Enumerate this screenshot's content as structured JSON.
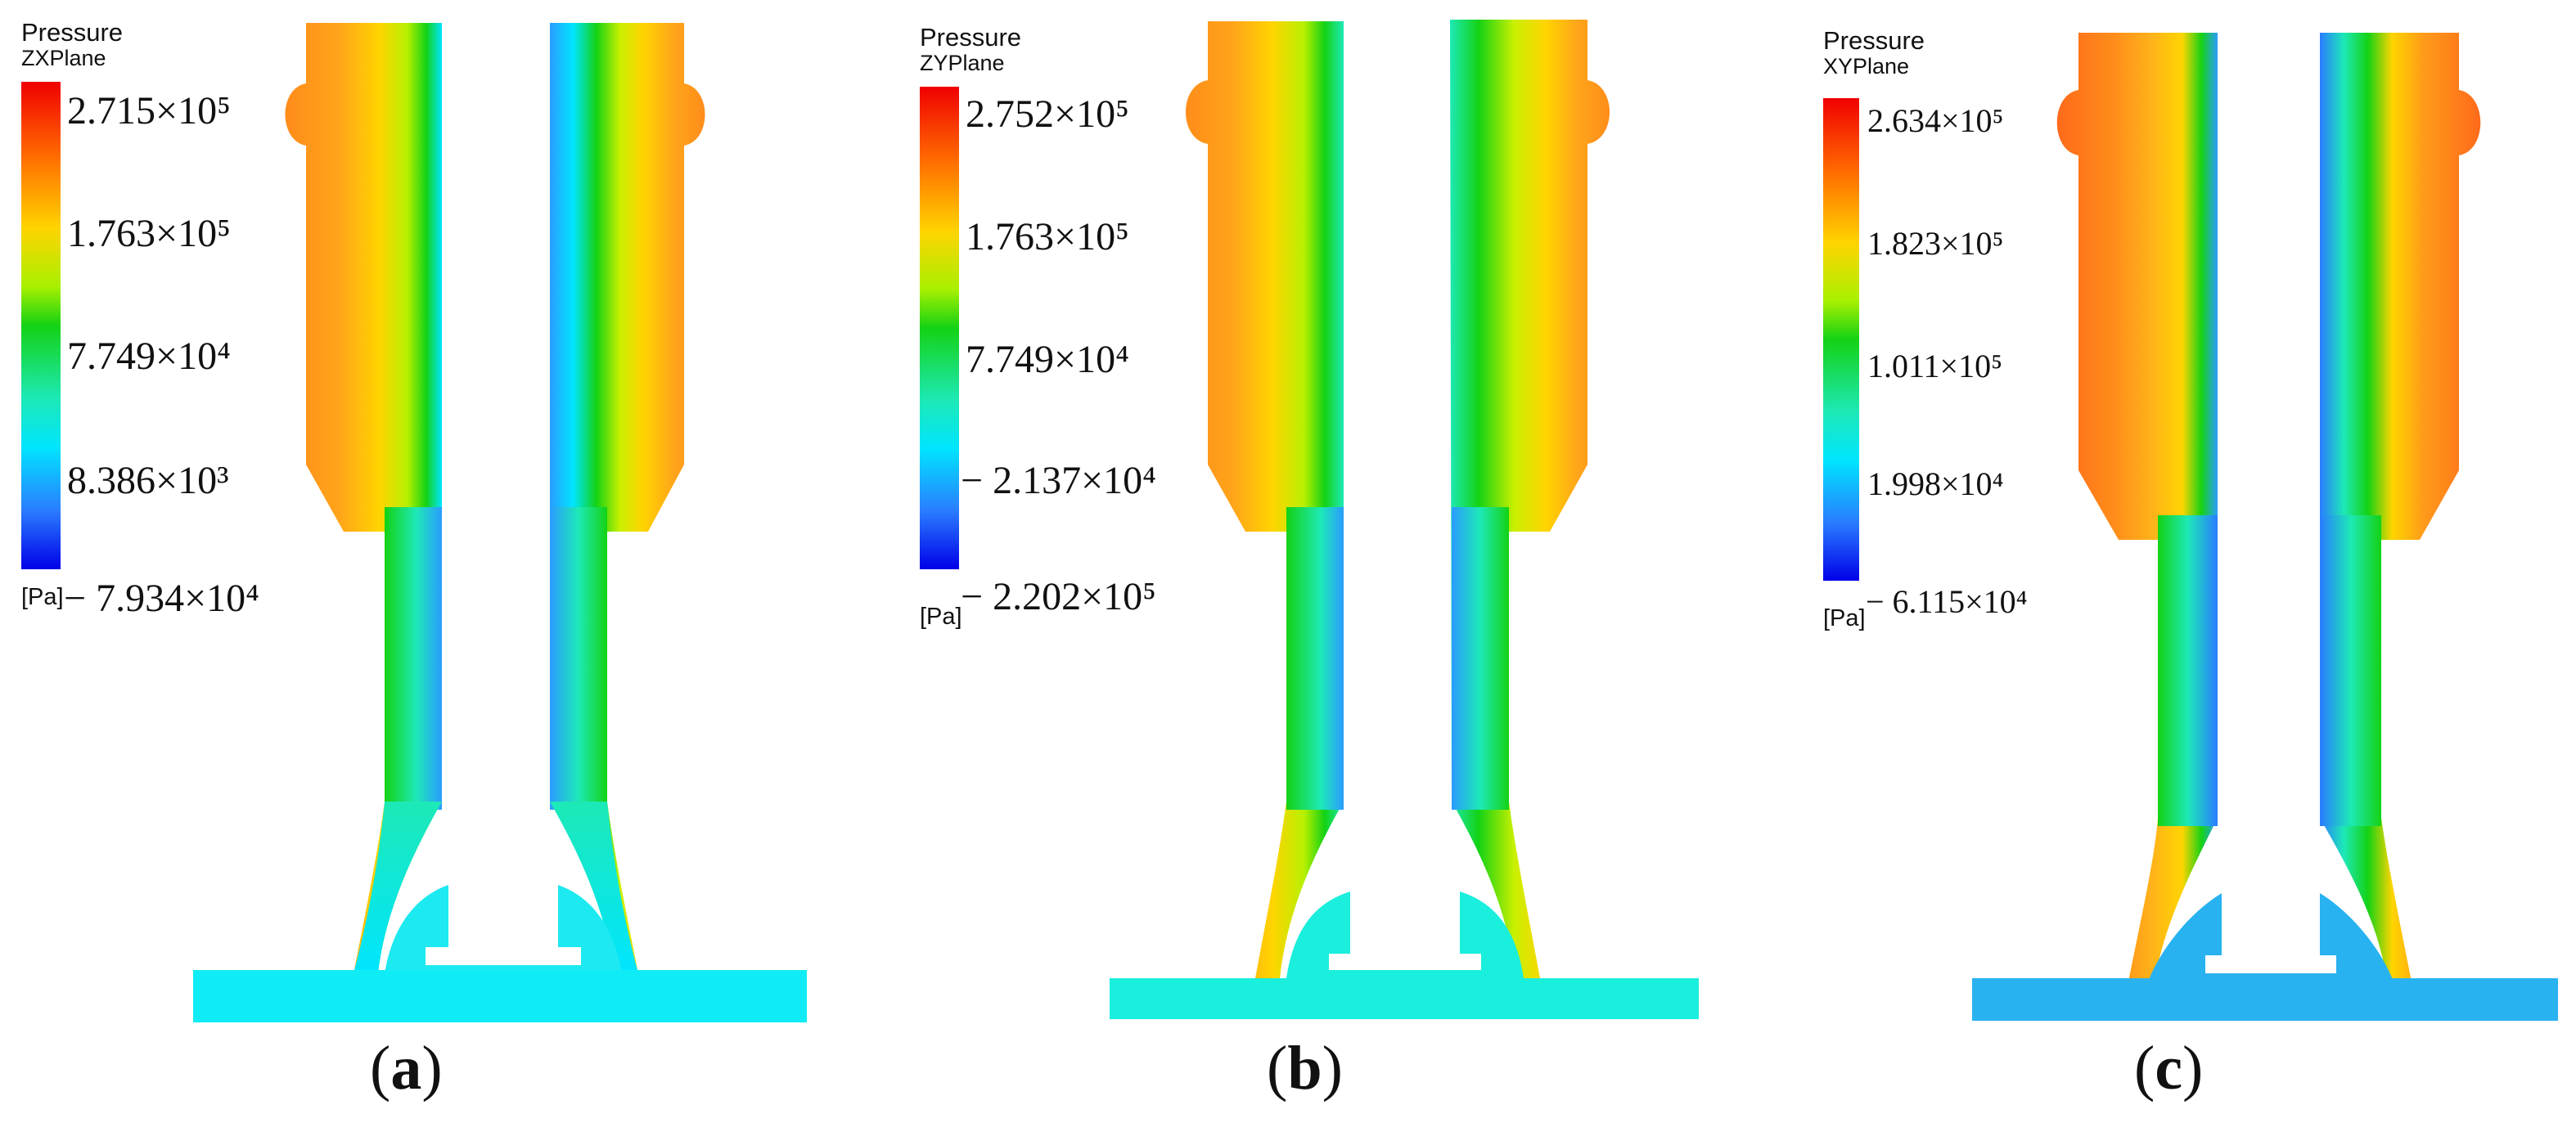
{
  "panels": [
    {
      "id": "a",
      "legend": {
        "title": "Pressure",
        "plane": "ZXPlane",
        "unit": "[Pa]",
        "ticks": [
          "2.715×10⁵",
          "1.763×10⁵",
          "7.749×10⁴",
          "8.386×10³",
          "− 7.934×10⁴"
        ]
      },
      "caption": "a"
    },
    {
      "id": "b",
      "legend": {
        "title": "Pressure",
        "plane": "ZYPlane",
        "unit": "[Pa]",
        "ticks": [
          "2.752×10⁵",
          "1.763×10⁵",
          "7.749×10⁴",
          "− 2.137×10⁴",
          "− 2.202×10⁵"
        ]
      },
      "caption": "b"
    },
    {
      "id": "c",
      "legend": {
        "title": "Pressure",
        "plane": "XYPlane",
        "unit": "[Pa]",
        "ticks": [
          "2.634×10⁵",
          "1.823×10⁵",
          "1.011×10⁵",
          "1.998×10⁴",
          "− 6.115×10⁴"
        ]
      },
      "caption": "c"
    }
  ],
  "colors": {
    "high": "#f00000",
    "orange": "#ff8c1a",
    "yellow": "#ffd400",
    "green": "#14d214",
    "cyan": "#00e5ff",
    "blue": "#2a7cff",
    "low": "#0000e8"
  }
}
